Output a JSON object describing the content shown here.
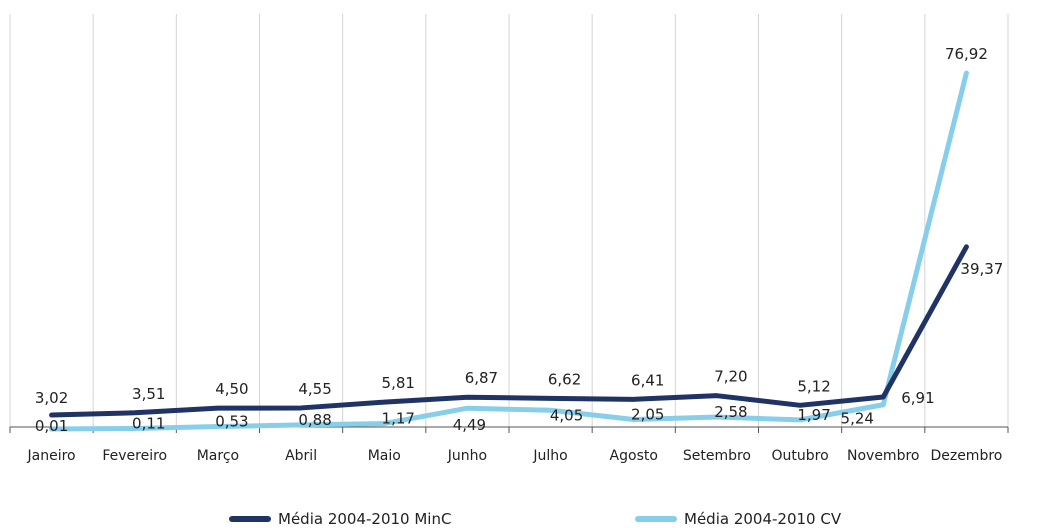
{
  "chart_data": {
    "type": "line",
    "categories": [
      "Janeiro",
      "Fevereiro",
      "Março",
      "Abril",
      "Maio",
      "Junho",
      "Julho",
      "Agosto",
      "Setembro",
      "Outubro",
      "Novembro",
      "Dezembro"
    ],
    "series": [
      {
        "name": "Média 2004-2010 MinC",
        "color": "#1f3464",
        "values": [
          3.02,
          3.51,
          4.5,
          4.55,
          5.81,
          6.87,
          6.62,
          6.41,
          7.2,
          5.12,
          6.91,
          39.37
        ],
        "labels": [
          "3,02",
          "3,51",
          "4,50",
          "4,55",
          "5,81",
          "6,87",
          "6,62",
          "6,41",
          "7,20",
          "5,12",
          "6,91",
          "39,37"
        ]
      },
      {
        "name": "Média 2004-2010 CV",
        "color": "#87ceeb",
        "values": [
          0.01,
          0.11,
          0.53,
          0.88,
          1.17,
          4.49,
          4.05,
          2.05,
          2.58,
          1.97,
          5.24,
          76.92
        ],
        "labels": [
          "0,01",
          "0,11",
          "0,53",
          "0,88",
          "1,17",
          "4,49",
          "4,05",
          "2,05",
          "2,58",
          "1,97",
          "5,24",
          "76,92"
        ]
      }
    ],
    "ylim": [
      -1.5,
      96
    ],
    "grid": true,
    "legend_position": "bottom"
  }
}
